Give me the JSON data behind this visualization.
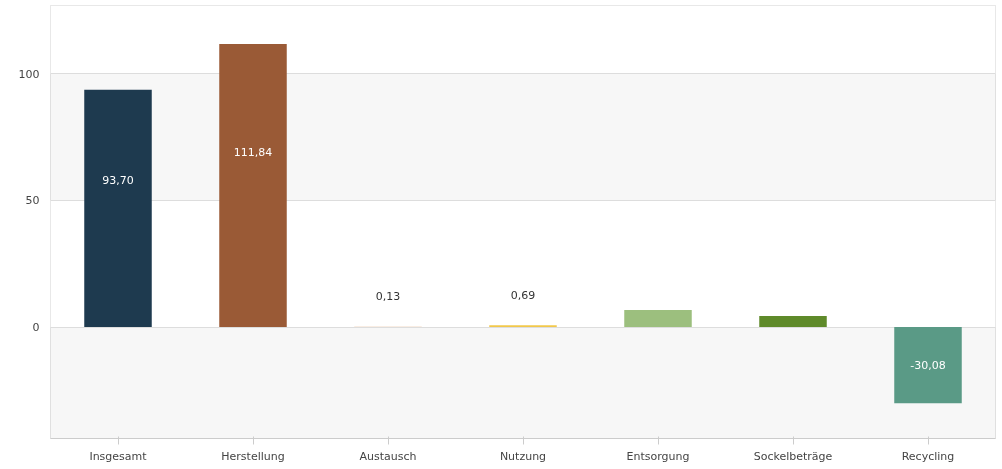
{
  "chart_data": {
    "type": "bar",
    "categories": [
      "Insgesamt",
      "Herstellung",
      "Austausch",
      "Nutzung",
      "Entsorgung",
      "Sockelbeträge",
      "Recycling"
    ],
    "values": [
      93.7,
      111.84,
      0.13,
      0.69,
      6.7,
      4.4,
      -30.08
    ],
    "colors": [
      "#1e3a4f",
      "#9a5a36",
      "#e8b890",
      "#f2c84b",
      "#9cbf7e",
      "#5f8a2a",
      "#5a9a86"
    ],
    "value_labels": [
      "93,70",
      "111,84",
      "0,13",
      "0,69",
      null,
      null,
      "-30,08"
    ],
    "ylim": [
      -44,
      127
    ],
    "yticks": [
      0,
      50,
      100
    ],
    "grid": "y"
  }
}
